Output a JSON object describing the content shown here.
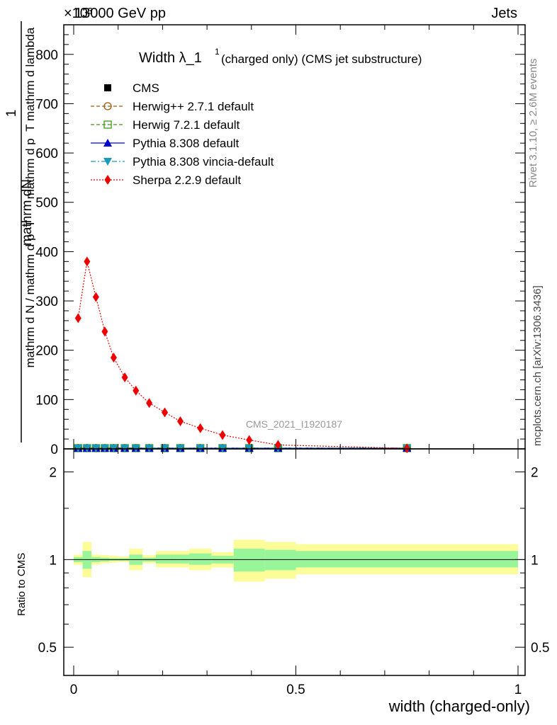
{
  "header": {
    "exponent": "×10³",
    "energy": "13000 GeV pp",
    "process": "Jets"
  },
  "side": {
    "rivet": "Rivet 3.1.10, ≥ 2.6M events",
    "mcplots": "mcplots.cern.ch [arXiv:1306.3436]"
  },
  "chart_data": {
    "type": "line",
    "title_main": "Width λ_1",
    "title_sup": "1",
    "title_sub": "(charged only) (CMS jet substructure)",
    "watermark": "CMS_2021_I1920187",
    "xlabel": "width (charged-only)",
    "ylabel_numerator": "mathrm dN",
    "ylabel_num_denominator": "mathrm d p_T mathrm d lambda",
    "ylabel_one": "1",
    "ylabel_denominator": "mathrm d N / mathrm d p_T",
    "ylabel_denominator_tail": "mathrm d p_T mathrm d lambda",
    "ratio_ylabel": "Ratio to CMS",
    "xlim": [
      0,
      1
    ],
    "ylim": [
      0,
      860
    ],
    "ratio_ylim_log": [
      0.4,
      2.4
    ],
    "x_ticks": [
      {
        "v": 0,
        "label": "0"
      },
      {
        "v": 0.5,
        "label": "0.5"
      },
      {
        "v": 1,
        "label": "1"
      }
    ],
    "y_ticks": [
      {
        "v": 0,
        "label": "0"
      },
      {
        "v": 100,
        "label": "100"
      },
      {
        "v": 200,
        "label": "200"
      },
      {
        "v": 300,
        "label": "300"
      },
      {
        "v": 400,
        "label": "400"
      },
      {
        "v": 500,
        "label": "500"
      },
      {
        "v": 600,
        "label": "600"
      },
      {
        "v": 700,
        "label": "700"
      },
      {
        "v": 800,
        "label": "800"
      }
    ],
    "ratio_ticks": [
      {
        "v": 0.5,
        "label": "0.5"
      },
      {
        "v": 1,
        "label": "1"
      },
      {
        "v": 2,
        "label": "2"
      }
    ],
    "x": [
      0.01,
      0.03,
      0.05,
      0.07,
      0.09,
      0.115,
      0.14,
      0.17,
      0.205,
      0.24,
      0.285,
      0.335,
      0.395,
      0.46,
      0.75
    ],
    "series": [
      {
        "name": "CMS",
        "color": "#000000",
        "marker": "square",
        "line": "none",
        "values": [
          1.5,
          1.5,
          1.5,
          1.5,
          1.5,
          1.5,
          1.5,
          1.5,
          1.5,
          1.5,
          1.5,
          1.5,
          1.5,
          1.5,
          1.5
        ]
      },
      {
        "name": "Herwig++ 2.7.1 default",
        "color": "#a05a0a",
        "marker": "circle-open",
        "line": "dashed",
        "values": [
          1.5,
          1.5,
          1.5,
          1.5,
          1.5,
          1.5,
          1.5,
          1.5,
          1.5,
          1.5,
          1.5,
          1.5,
          1.5,
          1.5,
          1.5
        ]
      },
      {
        "name": "Herwig 7.2.1 default",
        "color": "#3a9a1a",
        "marker": "square-open",
        "line": "dashed",
        "values": [
          1.5,
          1.5,
          1.5,
          1.5,
          1.5,
          1.5,
          1.5,
          1.5,
          1.5,
          1.5,
          1.5,
          1.5,
          1.5,
          1.5,
          1.5
        ]
      },
      {
        "name": "Pythia 8.308 default",
        "color": "#0000cc",
        "marker": "triangle-up",
        "line": "solid",
        "values": [
          1.5,
          1.5,
          1.5,
          1.5,
          1.5,
          1.5,
          1.5,
          1.5,
          1.5,
          1.5,
          1.5,
          1.5,
          1.5,
          1.5,
          1.5
        ]
      },
      {
        "name": "Pythia 8.308 vincia-default",
        "color": "#1a9aba",
        "marker": "triangle-down",
        "line": "dashdot",
        "values": [
          1.5,
          1.5,
          1.5,
          1.5,
          1.5,
          1.5,
          1.5,
          1.5,
          1.5,
          1.5,
          1.5,
          1.5,
          1.5,
          1.5,
          1.5
        ]
      },
      {
        "name": "Sherpa 2.2.9 default",
        "color": "#ee0000",
        "marker": "diamond",
        "line": "dotted",
        "values": [
          265,
          380,
          308,
          238,
          185,
          145,
          118,
          93,
          74,
          56,
          42,
          28,
          18,
          8,
          1
        ]
      }
    ],
    "ratio_bands": [
      {
        "x0": 0.0,
        "x1": 0.02,
        "g": [
          0.98,
          1.02
        ],
        "y": [
          0.96,
          1.04
        ]
      },
      {
        "x0": 0.02,
        "x1": 0.04,
        "g": [
          0.93,
          1.07
        ],
        "y": [
          0.87,
          1.15
        ]
      },
      {
        "x0": 0.04,
        "x1": 0.06,
        "g": [
          0.98,
          1.02
        ],
        "y": [
          0.96,
          1.04
        ]
      },
      {
        "x0": 0.06,
        "x1": 0.08,
        "g": [
          0.985,
          1.015
        ],
        "y": [
          0.97,
          1.035
        ]
      },
      {
        "x0": 0.08,
        "x1": 0.1,
        "g": [
          0.99,
          1.01
        ],
        "y": [
          0.975,
          1.03
        ]
      },
      {
        "x0": 0.1,
        "x1": 0.125,
        "g": [
          0.99,
          1.01
        ],
        "y": [
          0.98,
          1.025
        ]
      },
      {
        "x0": 0.125,
        "x1": 0.155,
        "g": [
          0.96,
          1.04
        ],
        "y": [
          0.92,
          1.09
        ]
      },
      {
        "x0": 0.155,
        "x1": 0.185,
        "g": [
          0.985,
          1.015
        ],
        "y": [
          0.97,
          1.035
        ]
      },
      {
        "x0": 0.185,
        "x1": 0.225,
        "g": [
          0.97,
          1.04
        ],
        "y": [
          0.94,
          1.07
        ]
      },
      {
        "x0": 0.225,
        "x1": 0.26,
        "g": [
          0.97,
          1.04
        ],
        "y": [
          0.94,
          1.07
        ]
      },
      {
        "x0": 0.26,
        "x1": 0.31,
        "g": [
          0.96,
          1.05
        ],
        "y": [
          0.92,
          1.09
        ]
      },
      {
        "x0": 0.31,
        "x1": 0.36,
        "g": [
          0.97,
          1.03
        ],
        "y": [
          0.94,
          1.06
        ]
      },
      {
        "x0": 0.36,
        "x1": 0.43,
        "g": [
          0.91,
          1.09
        ],
        "y": [
          0.84,
          1.17
        ]
      },
      {
        "x0": 0.43,
        "x1": 0.5,
        "g": [
          0.92,
          1.08
        ],
        "y": [
          0.86,
          1.15
        ]
      },
      {
        "x0": 0.5,
        "x1": 1.0,
        "g": [
          0.94,
          1.07
        ],
        "y": [
          0.89,
          1.13
        ]
      }
    ],
    "ratio_band_colors": {
      "inner": "#99f599",
      "outer": "#fcfc99"
    },
    "legend_position": "top-left"
  }
}
